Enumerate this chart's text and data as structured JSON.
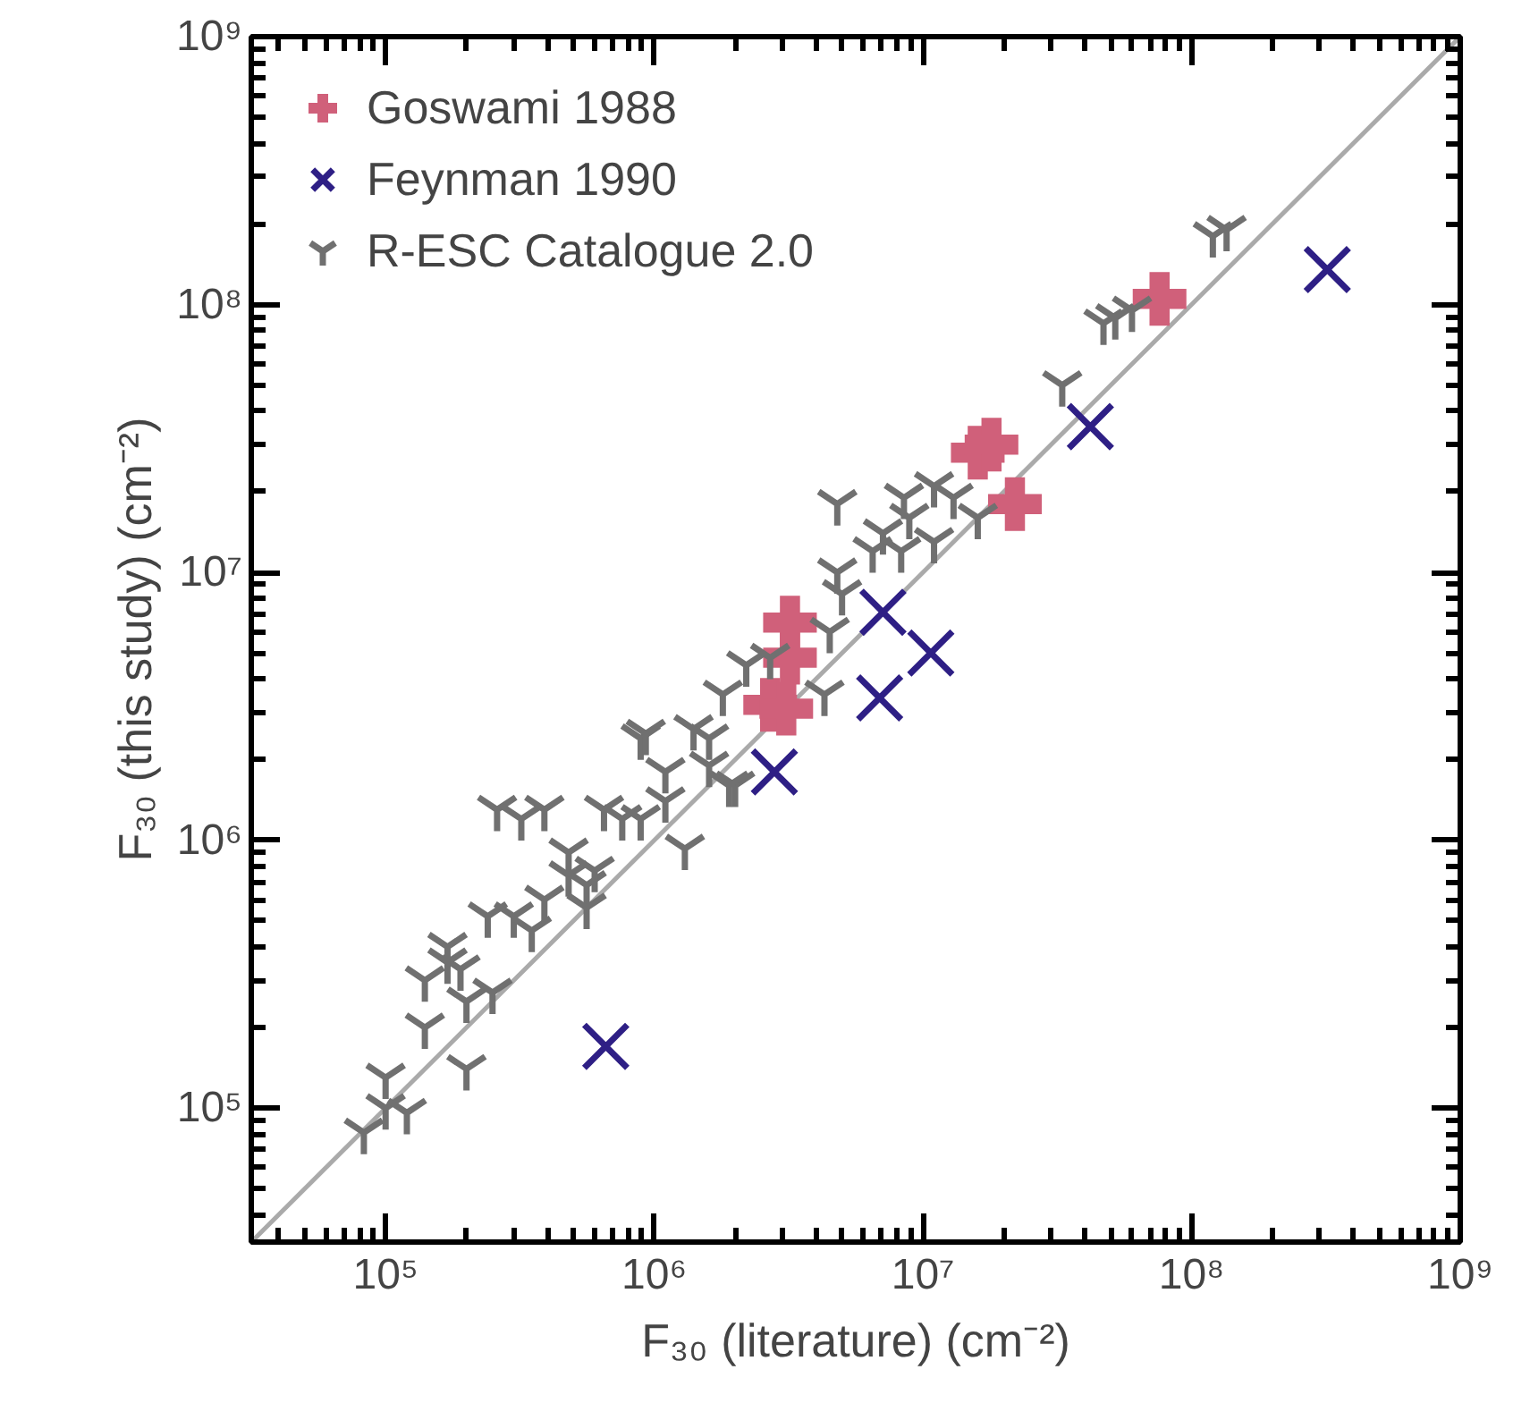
{
  "chart_data": {
    "type": "scatter",
    "xlabel": "F₃₀ (literature) (cm⁻²)",
    "ylabel": "F₃₀ (this study) (cm⁻²)",
    "log": "xy",
    "grid": false,
    "legend": "top left",
    "xlim": [
      31623,
      1000000000
    ],
    "ylim": [
      31623,
      1000000000
    ],
    "xticks": [
      {
        "value": 100000,
        "label": "10⁵"
      },
      {
        "value": 1000000,
        "label": "10⁶"
      },
      {
        "value": 10000000,
        "label": "10⁷"
      },
      {
        "value": 100000000,
        "label": "10⁸"
      },
      {
        "value": 1000000000,
        "label": "10⁹"
      }
    ],
    "yticks": [
      {
        "value": 100000,
        "label": "10⁵"
      },
      {
        "value": 1000000,
        "label": "10⁶"
      },
      {
        "value": 10000000,
        "label": "10⁷"
      },
      {
        "value": 100000000,
        "label": "10⁸"
      },
      {
        "value": 1000000000,
        "label": "10⁹"
      }
    ],
    "series": [
      {
        "type": "line",
        "color": "#aaaaaa",
        "marker": "none",
        "line_style": "solid",
        "x": [
          31623,
          1000000000
        ],
        "values": [
          31623,
          1000000000
        ]
      },
      {
        "name": "Goswami 1988",
        "color": "#d0607a",
        "marker": "cross",
        "x": [
          3200000,
          3200000,
          2700000,
          3100000,
          16000000,
          18000000,
          22000000,
          76000000
        ],
        "values": [
          6500000,
          4800000,
          3200000,
          3100000,
          28000000,
          30000000,
          18000000,
          105000000
        ]
      },
      {
        "name": "Feynman 1990",
        "color": "#2e1f85",
        "marker": "x",
        "x": [
          660000,
          2800000,
          6900000,
          10700000,
          7100000,
          42000000,
          320000000
        ],
        "values": [
          170000,
          1800000,
          3400000,
          5000000,
          7100000,
          35000000,
          135000000
        ]
      },
      {
        "name": "R-ESC Catalogue 2.0",
        "color": "#707070",
        "x": [
          83000,
          100000,
          120000,
          100000,
          140000,
          200000,
          140000,
          170000,
          190000,
          200000,
          250000,
          170000,
          260000,
          320000,
          390000,
          240000,
          300000,
          350000,
          390000,
          480000,
          480000,
          560000,
          600000,
          560000,
          650000,
          760000,
          890000,
          1100000,
          1100000,
          1300000,
          890000,
          1400000,
          1600000,
          1600000,
          2000000,
          1800000,
          4800000,
          8500000,
          11000000,
          13000000,
          16000000,
          11000000,
          8900000,
          7100000,
          6500000,
          8300000,
          4800000,
          5000000,
          4500000,
          2700000,
          2200000,
          4300000,
          930000,
          1900000,
          33000000,
          47000000,
          52000000,
          60000000,
          135000000,
          120000000
        ],
        "values": [
          81000,
          100000,
          96000,
          130000,
          200000,
          140000,
          300000,
          350000,
          330000,
          250000,
          270000,
          400000,
          1300000,
          1200000,
          1300000,
          520000,
          520000,
          460000,
          600000,
          900000,
          740000,
          680000,
          770000,
          560000,
          1300000,
          1200000,
          1200000,
          1400000,
          1800000,
          930000,
          2400000,
          2600000,
          2400000,
          1900000,
          1600000,
          3500000,
          18000000,
          19000000,
          21000000,
          19000000,
          16000000,
          13000000,
          16000000,
          14000000,
          12000000,
          12000000,
          10000000,
          8300000,
          6000000,
          4800000,
          4500000,
          3500000,
          2500000,
          1600000,
          50000000,
          85000000,
          89000000,
          95000000,
          190000000,
          180000000
        ]
      }
    ]
  }
}
